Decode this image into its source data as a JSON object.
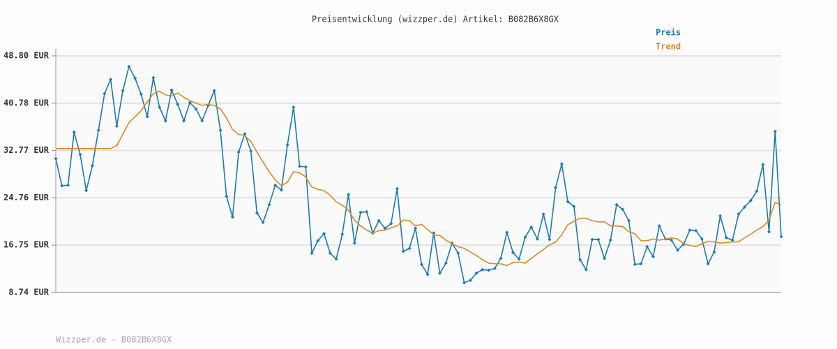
{
  "chart_data": {
    "type": "line",
    "title": "Preisentwicklung (wizzper.de) Artikel: B082B6X8GX",
    "footer": "Wizzper.de - B082B6X8GX",
    "ylim": [
      8.74,
      48.8
    ],
    "yticks": [
      {
        "value": 8.74,
        "label": "8.74 EUR"
      },
      {
        "value": 16.75,
        "label": "16.75 EUR"
      },
      {
        "value": 24.76,
        "label": "24.76 EUR"
      },
      {
        "value": 32.77,
        "label": "32.77 EUR"
      },
      {
        "value": 40.78,
        "label": "40.78 EUR"
      },
      {
        "value": 48.8,
        "label": "48.80 EUR"
      }
    ],
    "grid": true,
    "legend": "top-right",
    "series": [
      {
        "name": "Preis",
        "color": "#1a7ab5",
        "markers": true,
        "values": [
          31.4,
          26.8,
          26.9,
          35.9,
          32.1,
          26.0,
          30.2,
          36.2,
          42.4,
          44.8,
          36.9,
          42.9,
          47.0,
          45.0,
          42.3,
          38.5,
          45.1,
          40.1,
          37.8,
          43.0,
          40.6,
          37.8,
          40.9,
          39.8,
          37.8,
          40.4,
          42.9,
          36.2,
          25.0,
          21.5,
          32.5,
          35.6,
          32.7,
          22.2,
          20.6,
          23.6,
          26.9,
          26.1,
          33.7,
          40.1,
          30.1,
          30.0,
          15.4,
          17.5,
          18.7,
          15.4,
          14.4,
          18.6,
          25.3,
          17.1,
          22.3,
          22.4,
          18.8,
          20.9,
          19.6,
          20.4,
          26.3,
          15.7,
          16.2,
          19.6,
          13.5,
          11.8,
          18.8,
          12.0,
          13.7,
          17.1,
          15.4,
          10.4,
          10.8,
          12.0,
          12.6,
          12.5,
          12.8,
          14.5,
          18.9,
          15.5,
          14.4,
          18.1,
          19.8,
          17.8,
          22.0,
          17.7,
          26.5,
          30.5,
          24.1,
          23.3,
          14.3,
          12.6,
          17.7,
          17.7,
          14.5,
          17.6,
          23.6,
          22.8,
          20.9,
          13.5,
          13.6,
          16.5,
          14.8,
          20.0,
          17.8,
          17.6,
          15.9,
          16.9,
          19.3,
          19.2,
          17.8,
          13.6,
          15.6,
          21.7,
          18.0,
          17.6,
          22.0,
          23.2,
          24.3,
          25.9,
          30.4,
          19.0,
          36.0,
          18.2
        ]
      },
      {
        "name": "Trend",
        "color": "#dd8822",
        "markers": false,
        "values": [
          33.1,
          33.1,
          33.1,
          33.1,
          33.1,
          33.1,
          33.1,
          33.1,
          33.1,
          33.1,
          33.6,
          35.5,
          37.5,
          38.5,
          39.5,
          41.0,
          42.4,
          42.8,
          42.2,
          42.0,
          42.5,
          41.8,
          41.2,
          40.8,
          40.4,
          40.6,
          40.4,
          39.8,
          38.3,
          36.3,
          35.5,
          35.3,
          34.3,
          32.5,
          30.8,
          29.2,
          27.8,
          26.8,
          27.4,
          29.2,
          29.0,
          28.3,
          26.6,
          26.2,
          26.0,
          25.2,
          24.1,
          23.5,
          22.7,
          21.0,
          20.0,
          19.3,
          18.8,
          19.2,
          19.3,
          19.7,
          20.0,
          21.0,
          20.9,
          20.0,
          20.3,
          19.4,
          18.5,
          18.4,
          17.6,
          17.0,
          16.5,
          16.2,
          15.6,
          15.0,
          14.3,
          13.7,
          13.6,
          13.6,
          13.3,
          13.8,
          13.9,
          13.7,
          14.5,
          15.3,
          16.0,
          16.8,
          17.3,
          18.5,
          20.2,
          20.8,
          21.3,
          21.3,
          20.9,
          20.7,
          20.7,
          20.0,
          20.0,
          19.9,
          19.0,
          18.7,
          17.5,
          17.5,
          17.8,
          17.6,
          17.8,
          18.0,
          17.8,
          17.0,
          16.7,
          16.5,
          17.0,
          17.4,
          17.3,
          17.1,
          17.2,
          17.3,
          17.3,
          18.0,
          18.6,
          19.3,
          19.9,
          21.0,
          24.0,
          23.6
        ]
      }
    ]
  }
}
